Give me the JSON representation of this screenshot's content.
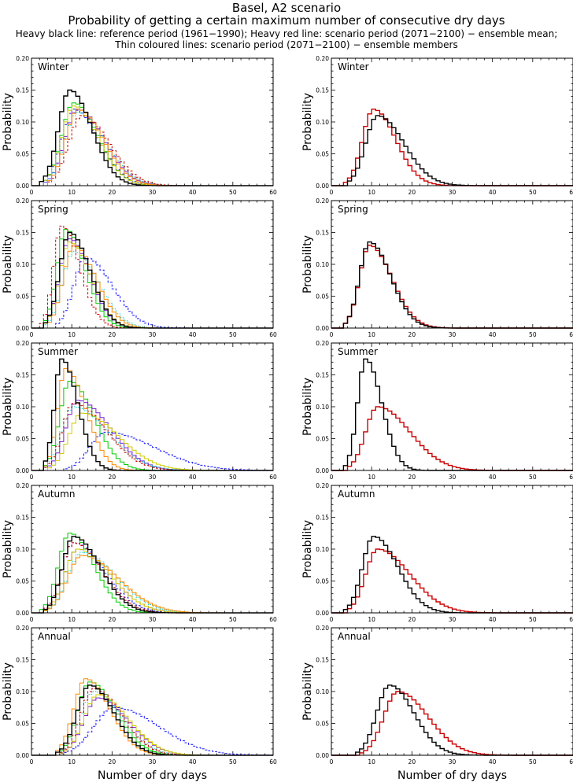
{
  "titles": {
    "line1": "Basel, A2 scenario",
    "line2": "Probability of getting a certain maximum number of consecutive dry days",
    "line3": "Heavy black line: reference period (1961−1990); Heavy red line: scenario period (2071−2100) − ensemble mean;",
    "line4": "Thin coloured lines: scenario period (2071−2100) − ensemble members"
  },
  "colors": {
    "reference": "#000000",
    "scenario_mean": "#cc0000",
    "members": [
      "#000000",
      "#00cc00",
      "#7a1fd6",
      "#1515ff",
      "#00cccc",
      "#cccc00",
      "#cc0000",
      "#ff8800",
      "#00aa66"
    ]
  },
  "chart_data": {
    "type": "line",
    "step": true,
    "layout": "5 rows x 2 columns",
    "ylabel": "Probability",
    "xlabel": "Number of dry days",
    "xlim": [
      0,
      60
    ],
    "ylim": [
      0,
      0.2
    ],
    "xticks": [
      0,
      10,
      20,
      30,
      40,
      50,
      60
    ],
    "yticks": [
      0.0,
      0.05,
      0.1,
      0.15,
      0.2
    ],
    "ytick_labels": [
      "0.00",
      "0.05",
      "0.10",
      "0.15",
      "0.20"
    ],
    "grid": false,
    "panels": [
      {
        "season": "Winter",
        "column": "members",
        "reference": {
          "peak_x": 9,
          "peak_y": 0.15,
          "sigma_left": 2.8,
          "sigma_right": 5.5
        },
        "members": [
          {
            "peak_x": 10,
            "peak_y": 0.13,
            "sigma_left": 3.0,
            "sigma_right": 6.0
          },
          {
            "peak_x": 11,
            "peak_y": 0.12,
            "sigma_left": 3.2,
            "sigma_right": 6.5
          },
          {
            "peak_x": 10,
            "peak_y": 0.12,
            "sigma_left": 3.0,
            "sigma_right": 6.2
          },
          {
            "peak_x": 11,
            "peak_y": 0.115,
            "sigma_left": 3.2,
            "sigma_right": 6.8
          },
          {
            "peak_x": 10,
            "peak_y": 0.125,
            "sigma_left": 3.0,
            "sigma_right": 6.0
          },
          {
            "peak_x": 12,
            "peak_y": 0.11,
            "sigma_left": 3.3,
            "sigma_right": 6.8
          },
          {
            "peak_x": 11,
            "peak_y": 0.12,
            "sigma_left": 3.0,
            "sigma_right": 6.3
          }
        ]
      },
      {
        "season": "Winter",
        "column": "mean",
        "reference": {
          "peak_x": 11,
          "peak_y": 0.11,
          "sigma_left": 3.0,
          "sigma_right": 6.5
        },
        "scenario_mean": {
          "peak_x": 10,
          "peak_y": 0.12,
          "sigma_left": 2.8,
          "sigma_right": 5.5
        }
      },
      {
        "season": "Spring",
        "column": "members",
        "reference": {
          "peak_x": 9,
          "peak_y": 0.15,
          "sigma_left": 2.5,
          "sigma_right": 5.0
        },
        "members": [
          {
            "peak_x": 8,
            "peak_y": 0.155,
            "sigma_left": 2.2,
            "sigma_right": 4.8
          },
          {
            "peak_x": 9,
            "peak_y": 0.14,
            "sigma_left": 2.5,
            "sigma_right": 5.0
          },
          {
            "peak_x": 13,
            "peak_y": 0.11,
            "sigma_left": 3.0,
            "sigma_right": 6.5
          },
          {
            "peak_x": 10,
            "peak_y": 0.12,
            "sigma_left": 2.8,
            "sigma_right": 6.0
          },
          {
            "peak_x": 9,
            "peak_y": 0.135,
            "sigma_left": 2.5,
            "sigma_right": 5.2
          },
          {
            "peak_x": 7,
            "peak_y": 0.16,
            "sigma_left": 2.0,
            "sigma_right": 4.5
          },
          {
            "peak_x": 10,
            "peak_y": 0.13,
            "sigma_left": 2.6,
            "sigma_right": 5.5
          }
        ]
      },
      {
        "season": "Spring",
        "column": "mean",
        "reference": {
          "peak_x": 9,
          "peak_y": 0.135,
          "sigma_left": 2.5,
          "sigma_right": 5.2
        },
        "scenario_mean": {
          "peak_x": 9,
          "peak_y": 0.13,
          "sigma_left": 2.5,
          "sigma_right": 5.5
        }
      },
      {
        "season": "Summer",
        "column": "members",
        "reference": {
          "peak_x": 7,
          "peak_y": 0.175,
          "sigma_left": 1.8,
          "sigma_right": 4.0
        },
        "members": [
          {
            "peak_x": 9,
            "peak_y": 0.14,
            "sigma_left": 2.5,
            "sigma_right": 6.0
          },
          {
            "peak_x": 11,
            "peak_y": 0.11,
            "sigma_left": 3.0,
            "sigma_right": 8.0
          },
          {
            "peak_x": 18,
            "peak_y": 0.06,
            "sigma_left": 4.0,
            "sigma_right": 12.0
          },
          {
            "peak_x": 10,
            "peak_y": 0.1,
            "sigma_left": 3.0,
            "sigma_right": 8.5
          },
          {
            "peak_x": 12,
            "peak_y": 0.09,
            "sigma_left": 3.2,
            "sigma_right": 9.0
          },
          {
            "peak_x": 10,
            "peak_y": 0.105,
            "sigma_left": 2.8,
            "sigma_right": 8.0
          },
          {
            "peak_x": 8,
            "peak_y": 0.16,
            "sigma_left": 2.0,
            "sigma_right": 5.0
          }
        ]
      },
      {
        "season": "Summer",
        "column": "mean",
        "reference": {
          "peak_x": 8,
          "peak_y": 0.175,
          "sigma_left": 2.0,
          "sigma_right": 4.0
        },
        "scenario_mean": {
          "peak_x": 11,
          "peak_y": 0.1,
          "sigma_left": 3.0,
          "sigma_right": 8.0
        }
      },
      {
        "season": "Autumn",
        "column": "members",
        "reference": {
          "peak_x": 10,
          "peak_y": 0.12,
          "sigma_left": 2.8,
          "sigma_right": 6.5
        },
        "members": [
          {
            "peak_x": 9,
            "peak_y": 0.125,
            "sigma_left": 2.8,
            "sigma_right": 6.0
          },
          {
            "peak_x": 11,
            "peak_y": 0.1,
            "sigma_left": 3.2,
            "sigma_right": 8.0
          },
          {
            "peak_x": 10,
            "peak_y": 0.11,
            "sigma_left": 3.0,
            "sigma_right": 7.5
          },
          {
            "peak_x": 12,
            "peak_y": 0.095,
            "sigma_left": 3.5,
            "sigma_right": 8.5
          },
          {
            "peak_x": 11,
            "peak_y": 0.1,
            "sigma_left": 3.2,
            "sigma_right": 8.0
          },
          {
            "peak_x": 10,
            "peak_y": 0.11,
            "sigma_left": 3.0,
            "sigma_right": 7.0
          },
          {
            "peak_x": 12,
            "peak_y": 0.09,
            "sigma_left": 3.5,
            "sigma_right": 9.0
          }
        ]
      },
      {
        "season": "Autumn",
        "column": "mean",
        "reference": {
          "peak_x": 10,
          "peak_y": 0.12,
          "sigma_left": 2.8,
          "sigma_right": 6.0
        },
        "scenario_mean": {
          "peak_x": 11,
          "peak_y": 0.1,
          "sigma_left": 3.0,
          "sigma_right": 8.0
        }
      },
      {
        "season": "Annual",
        "column": "members",
        "reference": {
          "peak_x": 14,
          "peak_y": 0.11,
          "sigma_left": 3.2,
          "sigma_right": 6.0
        },
        "members": [
          {
            "peak_x": 14,
            "peak_y": 0.115,
            "sigma_left": 3.0,
            "sigma_right": 6.5
          },
          {
            "peak_x": 16,
            "peak_y": 0.09,
            "sigma_left": 3.5,
            "sigma_right": 7.5
          },
          {
            "peak_x": 20,
            "peak_y": 0.075,
            "sigma_left": 5.0,
            "sigma_right": 11.0
          },
          {
            "peak_x": 15,
            "peak_y": 0.1,
            "sigma_left": 3.3,
            "sigma_right": 7.0
          },
          {
            "peak_x": 16,
            "peak_y": 0.095,
            "sigma_left": 3.5,
            "sigma_right": 7.5
          },
          {
            "peak_x": 15,
            "peak_y": 0.105,
            "sigma_left": 3.2,
            "sigma_right": 6.8
          },
          {
            "peak_x": 13,
            "peak_y": 0.12,
            "sigma_left": 3.0,
            "sigma_right": 6.0
          }
        ]
      },
      {
        "season": "Annual",
        "column": "mean",
        "reference": {
          "peak_x": 14,
          "peak_y": 0.11,
          "sigma_left": 3.2,
          "sigma_right": 6.0
        },
        "scenario_mean": {
          "peak_x": 16,
          "peak_y": 0.1,
          "sigma_left": 3.5,
          "sigma_right": 7.5
        }
      }
    ]
  }
}
